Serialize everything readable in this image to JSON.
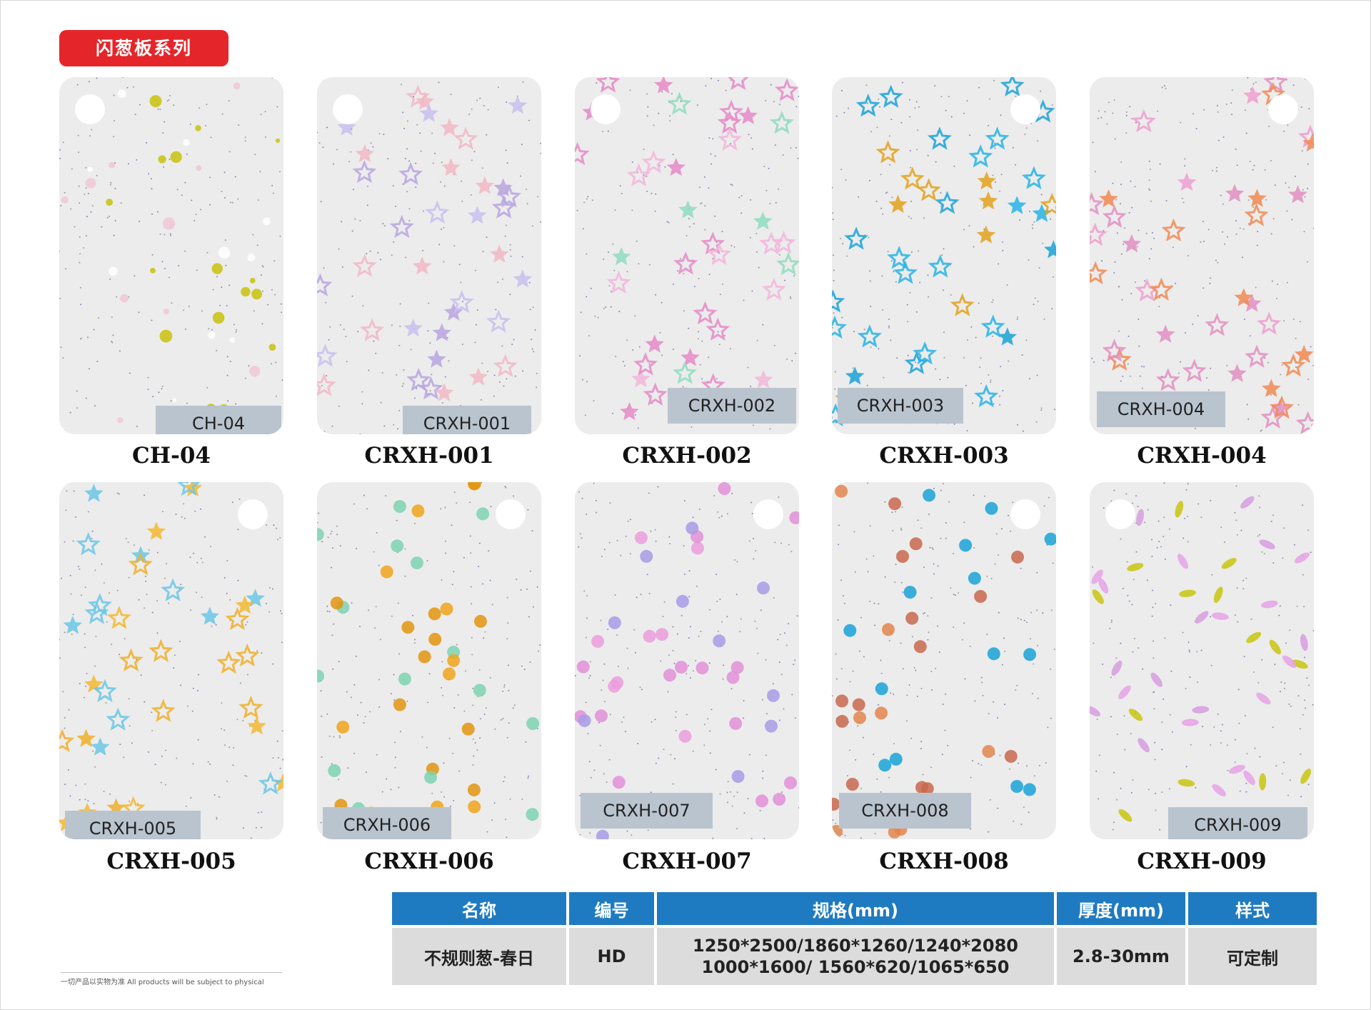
{
  "series_title": "闪葱板系列",
  "samples": [
    {
      "code": "CH-04",
      "sticker": "CH-04",
      "colors": [
        "#c9c20a",
        "#f0c8d6",
        "#ffffff"
      ],
      "shapes": "dots",
      "accent": "#c9c20a"
    },
    {
      "code": "CRXH-001",
      "sticker": "CRXH-001",
      "colors": [
        "#b9a6e0",
        "#f2b8c6",
        "#c8c0ef"
      ],
      "shapes": "star-outline",
      "accent": "#b9a6e0"
    },
    {
      "code": "CRXH-002",
      "sticker": "CRXH-002",
      "colors": [
        "#e68ac8",
        "#8fdcc0",
        "#f2b6dc"
      ],
      "shapes": "star-outline",
      "accent": "#e68ac8"
    },
    {
      "code": "CRXH-003",
      "sticker": "CRXH-003",
      "colors": [
        "#1aa3d8",
        "#e3a21c",
        "#27b4e6"
      ],
      "shapes": "star-outline",
      "accent": "#1aa3d8"
    },
    {
      "code": "CRXH-004",
      "sticker": "CRXH-004",
      "colors": [
        "#e38fc2",
        "#f28a52",
        "#ef9fcf"
      ],
      "shapes": "star-outline",
      "accent": "#e38fc2"
    },
    {
      "code": "CRXH-005",
      "sticker": "CRXH-005",
      "colors": [
        "#f0b02a",
        "#6bc7e6",
        "#f5b932"
      ],
      "shapes": "star-outline",
      "accent": "#f0b02a"
    },
    {
      "code": "CRXH-006",
      "sticker": "CRXH-006",
      "colors": [
        "#e3950f",
        "#7ed3b3",
        "#f0a51b"
      ],
      "shapes": "flower",
      "accent": "#e3950f"
    },
    {
      "code": "CRXH-007",
      "sticker": "CRXH-007",
      "colors": [
        "#e290d8",
        "#a89be6",
        "#ec9ddd"
      ],
      "shapes": "flower",
      "accent": "#e290d8"
    },
    {
      "code": "CRXH-008",
      "sticker": "CRXH-008",
      "colors": [
        "#1aa3d8",
        "#e3864d",
        "#c9694e"
      ],
      "shapes": "flower",
      "accent": "#1aa3d8"
    },
    {
      "code": "CRXH-009",
      "sticker": "CRXH-009",
      "colors": [
        "#c9c50f",
        "#d79ee0",
        "#e6a3e8"
      ],
      "shapes": "leaf",
      "accent": "#c9c50f"
    }
  ],
  "table": {
    "headers": [
      "名称",
      "编号",
      "规格(mm)",
      "厚度(mm)",
      "样式"
    ],
    "row": {
      "name": "不规则葱-春日",
      "code": "HD",
      "spec_line1": "1250*2500/1860*1260/1240*2080",
      "spec_line2": "1000*1600/ 1560*620/1065*650",
      "thickness": "2.8-30mm",
      "style": "可定制"
    }
  },
  "footnote": "一切产品以实物为准    All products will be subject to physical",
  "colors": {
    "header_blue": "#1f7bc1",
    "tag_red": "#e4262b"
  }
}
